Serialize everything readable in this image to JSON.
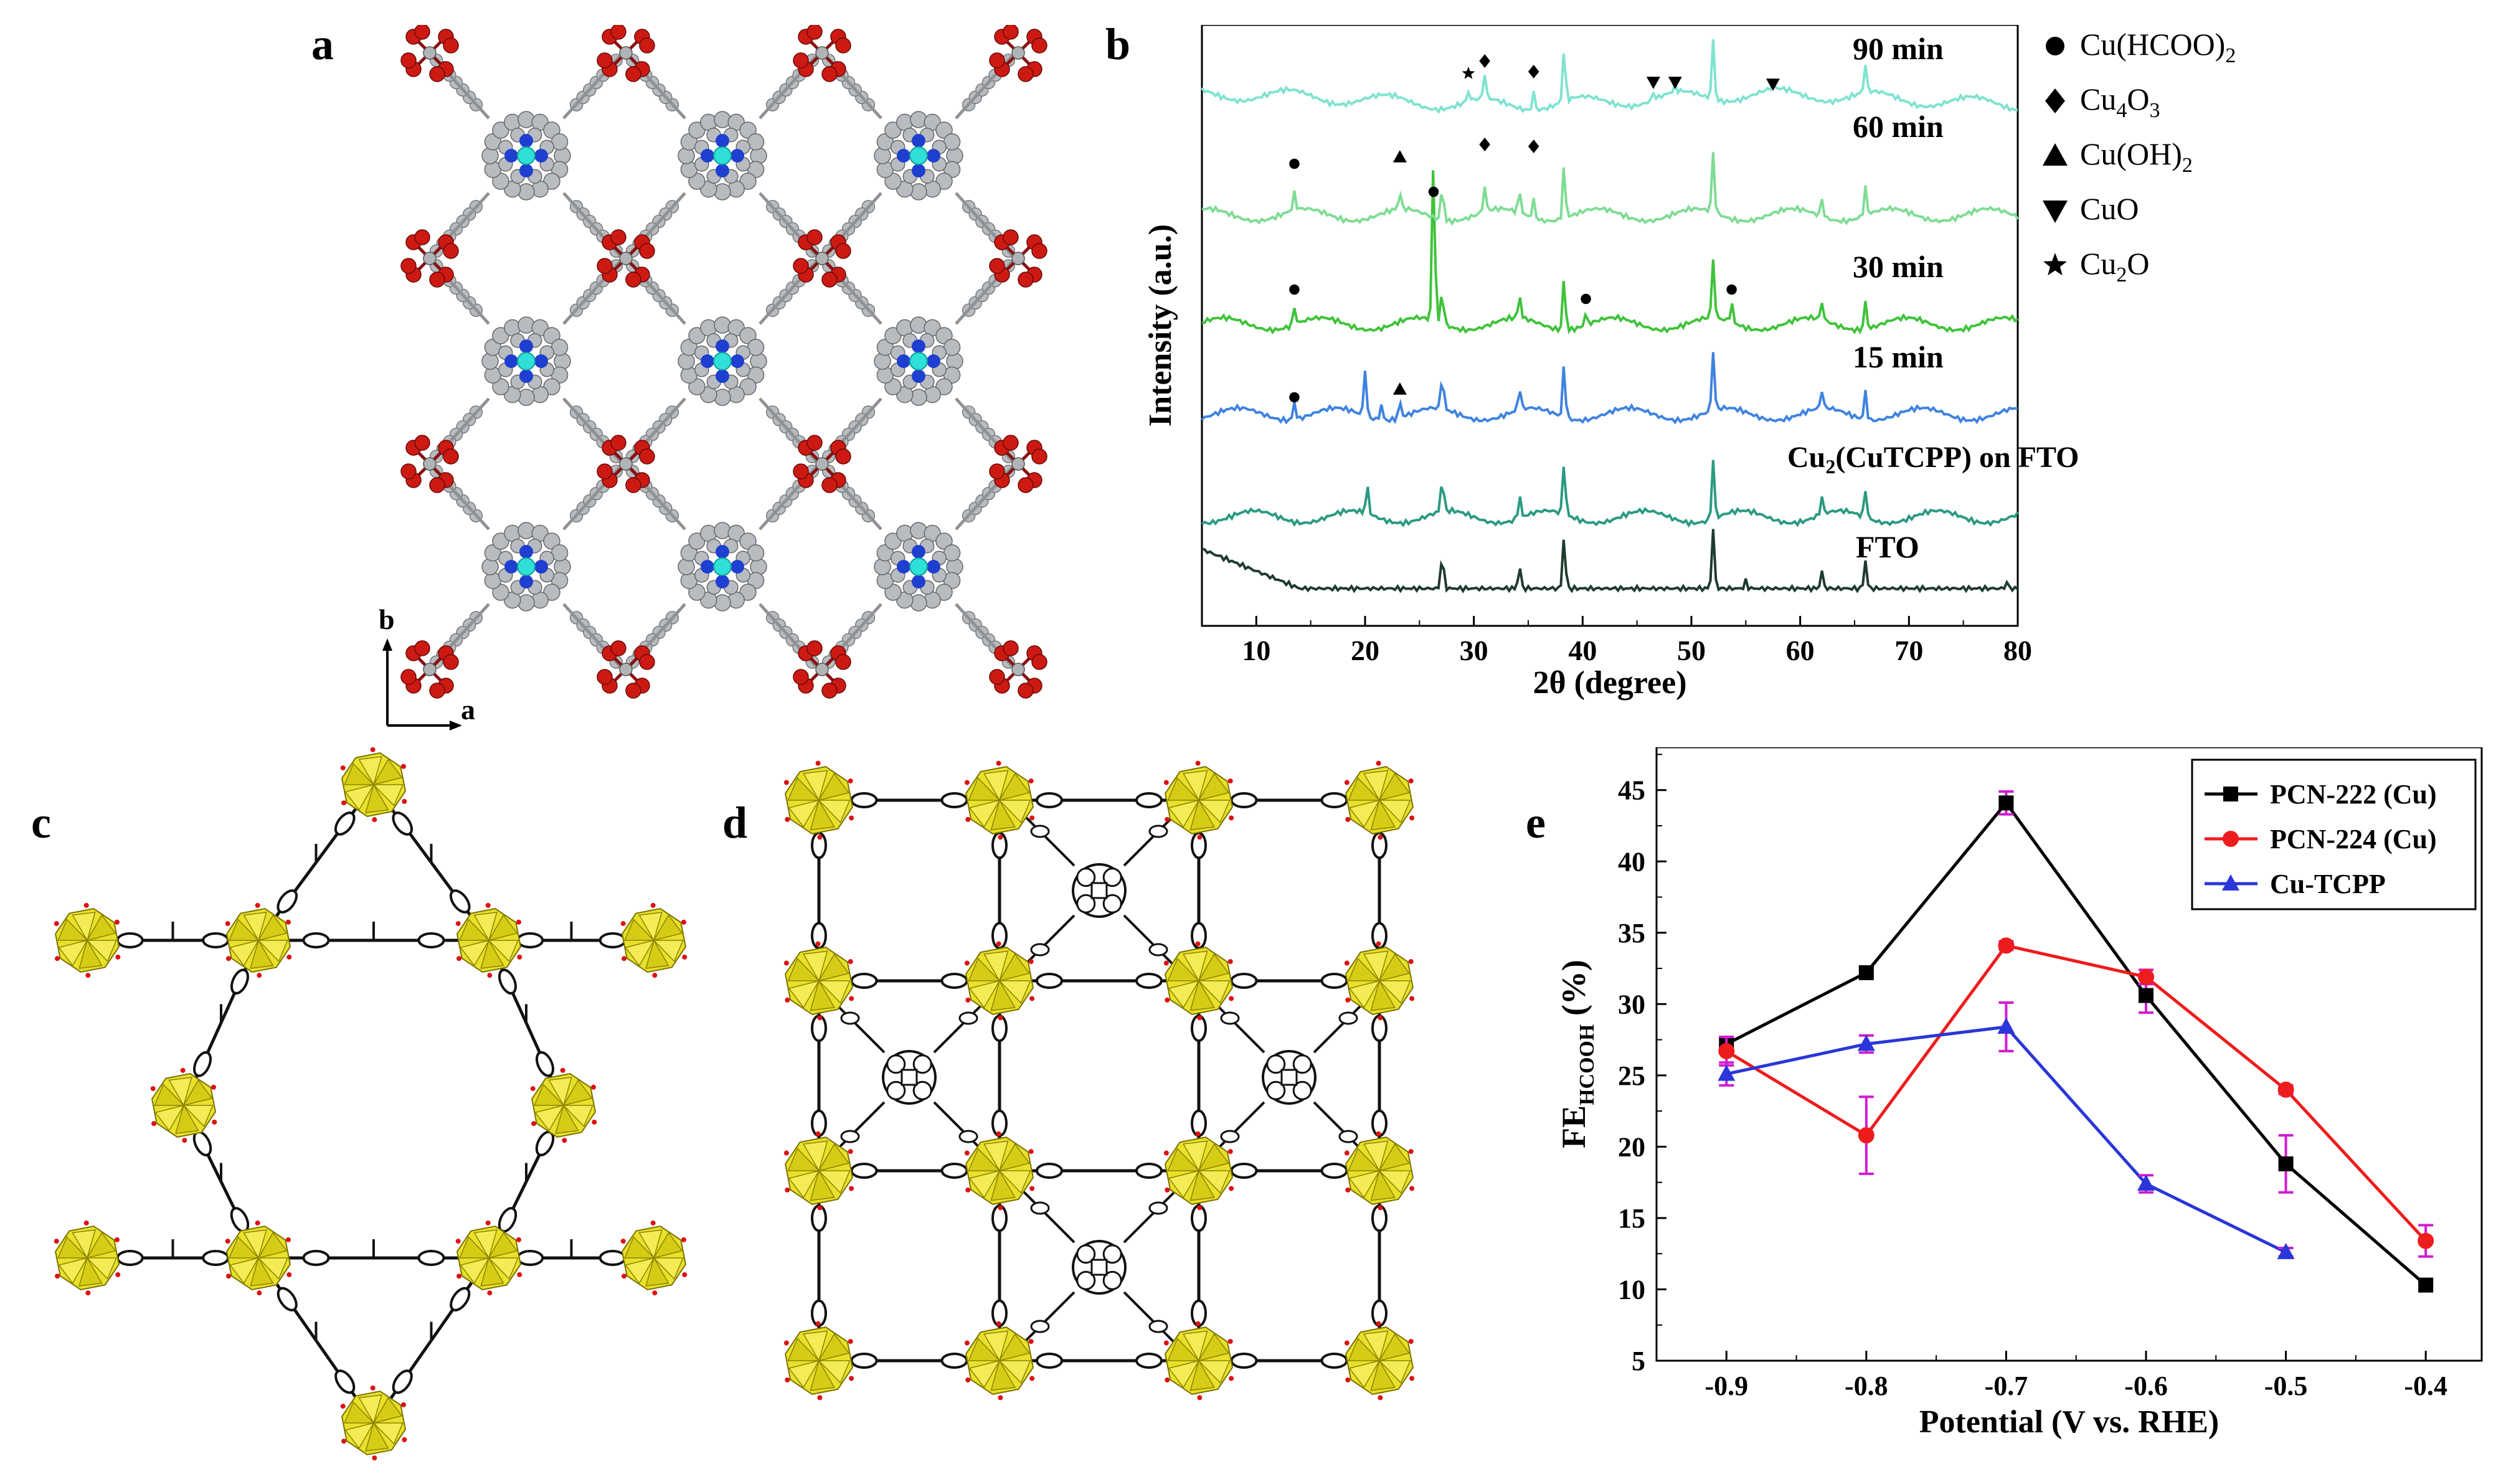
{
  "panels": {
    "a": "a",
    "b": "b",
    "c": "c",
    "d": "d",
    "e": "e"
  },
  "panel_a": {
    "axis_b": "b",
    "axis_a": "a"
  },
  "panel_b": {
    "xlabel": "2θ (degree)",
    "ylabel": "Intensity (a.u.)",
    "xticks": [
      "10",
      "20",
      "30",
      "40",
      "50",
      "60",
      "70",
      "80"
    ],
    "xtick_values": [
      10,
      20,
      30,
      40,
      50,
      60,
      70,
      80
    ],
    "xlim": [
      5,
      80
    ],
    "traces": [
      {
        "label": "90 min",
        "color": "#7fe3d0"
      },
      {
        "label": "60 min",
        "color": "#7fdc94"
      },
      {
        "label": "30 min",
        "color": "#3fc33a"
      },
      {
        "label": "15 min",
        "color": "#3f83e0"
      },
      {
        "label_main": "Cu",
        "label_sub": "2",
        "label_rest": "(CuTCPP) on FTO",
        "color": "#2b9a82"
      },
      {
        "label": "FTO",
        "color": "#1f3b2e"
      }
    ],
    "legend": [
      {
        "symbol": "circle",
        "text": "Cu(HCOO)",
        "sub": "2",
        "rest": ""
      },
      {
        "symbol": "diamond",
        "text": "Cu",
        "sub": "4",
        "rest": "O",
        "sub2": "3"
      },
      {
        "symbol": "triangle-up",
        "text": "Cu(OH)",
        "sub": "2",
        "rest": ""
      },
      {
        "symbol": "triangle-down",
        "text": "CuO",
        "sub": "",
        "rest": ""
      },
      {
        "symbol": "star",
        "text": "Cu",
        "sub": "2",
        "rest": "O"
      }
    ]
  },
  "chart_data": [
    {
      "type": "line",
      "title": "",
      "xlabel": "2θ (degree)",
      "ylabel": "Intensity (a.u.)",
      "xlim": [
        5,
        80
      ],
      "series": [
        {
          "name": "FTO",
          "peaks": [
            27.1,
            34.2,
            38.3,
            52.0,
            55.0,
            62.0,
            66.0,
            79.0
          ]
        },
        {
          "name": "Cu2(CuTCPP) on FTO",
          "peaks": [
            20.2,
            27.1,
            34.2,
            38.3,
            52.0,
            62.0,
            66.0
          ]
        },
        {
          "name": "15 min",
          "peaks": [
            13.5,
            20.0,
            21.5,
            23.2,
            27.1,
            34.2,
            38.3,
            52.0,
            62.0,
            66.0
          ]
        },
        {
          "name": "30 min",
          "peaks": [
            13.5,
            26.3,
            27.1,
            34.2,
            38.3,
            40.3,
            52.0,
            53.7,
            62.0,
            66.0
          ]
        },
        {
          "name": "60 min",
          "peaks": [
            13.5,
            23.2,
            27.1,
            31.0,
            34.2,
            35.5,
            38.3,
            52.0,
            62.0,
            66.0
          ]
        },
        {
          "name": "90 min",
          "peaks": [
            29.5,
            31.0,
            35.5,
            38.3,
            46.5,
            48.5,
            52.0,
            57.5,
            66.0
          ]
        }
      ]
    },
    {
      "type": "line",
      "title": "",
      "xlabel": "Potential (V vs. RHE)",
      "ylabel": "FE HCOOH (%)",
      "xlim": [
        -0.95,
        -0.36
      ],
      "ylim": [
        5,
        48
      ],
      "x": [
        -0.9,
        -0.8,
        -0.7,
        -0.6,
        -0.5,
        -0.4
      ],
      "series": [
        {
          "name": "PCN-222 (Cu)",
          "color": "#000000",
          "marker": "square",
          "x": [
            -0.9,
            -0.8,
            -0.7,
            -0.6,
            -0.5,
            -0.4
          ],
          "values": [
            27.2,
            32.2,
            44.1,
            30.6,
            18.8,
            10.3
          ],
          "err": [
            0.4,
            0.3,
            0.8,
            1.2,
            2.0,
            0.3
          ]
        },
        {
          "name": "PCN-224 (Cu)",
          "color": "#ee1c1c",
          "marker": "circle",
          "x": [
            -0.9,
            -0.8,
            -0.7,
            -0.6,
            -0.5,
            -0.4
          ],
          "values": [
            26.7,
            20.8,
            34.1,
            31.9,
            24.0,
            13.4
          ],
          "err": [
            1.0,
            2.7,
            0.3,
            0.5,
            0.3,
            1.1
          ]
        },
        {
          "name": "Cu-TCPP",
          "color": "#2a36d8",
          "marker": "triangle",
          "x": [
            -0.9,
            -0.8,
            -0.7,
            -0.6,
            -0.5
          ],
          "values": [
            25.1,
            27.2,
            28.4,
            17.4,
            12.6
          ],
          "err": [
            0.8,
            0.6,
            1.7,
            0.6,
            0.3
          ]
        }
      ]
    }
  ],
  "panel_e": {
    "xticks": [
      "-0.9",
      "-0.8",
      "-0.7",
      "-0.6",
      "-0.5",
      "-0.4"
    ],
    "xtick_values": [
      -0.9,
      -0.8,
      -0.7,
      -0.6,
      -0.5,
      -0.4
    ],
    "yticks": [
      "5",
      "10",
      "15",
      "20",
      "25",
      "30",
      "35",
      "40",
      "45"
    ],
    "ytick_values": [
      5,
      10,
      15,
      20,
      25,
      30,
      35,
      40,
      45
    ],
    "xlabel": "Potential (V vs. RHE)",
    "ylabel_main": "FE",
    "ylabel_sub": "HCOOH",
    "ylabel_rest": " (%)",
    "errorbar_color": "#d11bd1"
  },
  "colors": {
    "copper_node": "#cc1a12",
    "carbon": "#b8bcc0",
    "nitrogen": "#1f3fd0",
    "metal_center": "#2ee0d8",
    "cluster": "#e9e02a"
  }
}
